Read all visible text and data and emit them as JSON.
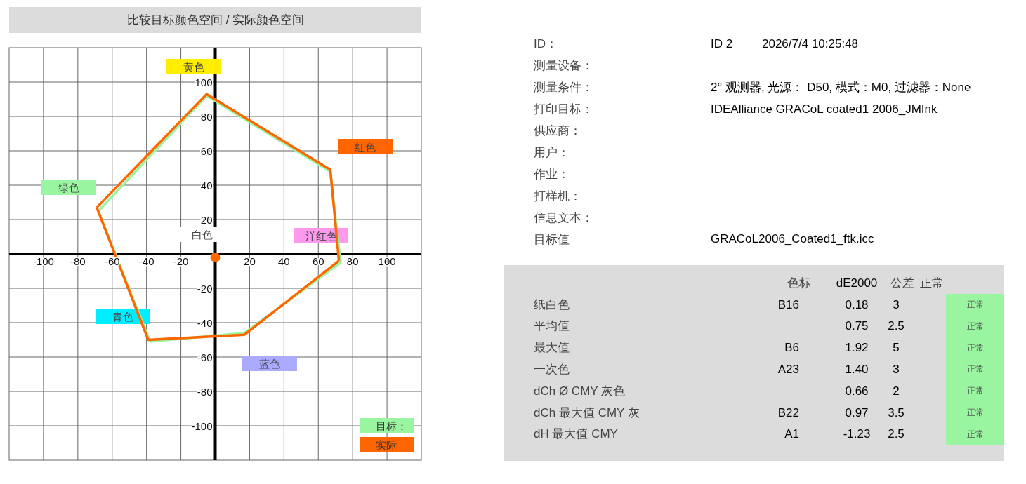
{
  "chart_data": [
    {
      "type": "line",
      "title": "比较目标颜色空间 / 实际颜色空间",
      "xlim": [
        -120,
        120
      ],
      "ylim": [
        -120,
        120
      ],
      "xticks": [
        -100,
        -80,
        -60,
        -40,
        -20,
        {
          "value": 0,
          "label": null
        },
        20,
        40,
        60,
        80,
        100
      ],
      "yticks": [
        -100,
        -80,
        -60,
        -40,
        -20,
        {
          "value": 0,
          "label": null
        },
        20,
        40,
        60,
        80,
        100
      ],
      "grid": true,
      "legend": "bottom right",
      "series": [
        {
          "name": "目标：",
          "color": "#99f5a0",
          "x": [
            -68,
            -5,
            67,
            73
          ],
          "values": [
            25,
            92,
            48,
            -5
          ]
        },
        {
          "color": "#99f5a0",
          "x": [
            -68,
            -38,
            17,
            73
          ],
          "values": [
            25,
            -51,
            -46,
            -5
          ]
        },
        {
          "name": "实际",
          "color": "#ff6600",
          "x": [
            -69,
            -5,
            67,
            72
          ],
          "values": [
            27,
            93,
            49,
            -4
          ]
        },
        {
          "color": "#ff6600",
          "x": [
            -69,
            -39,
            17,
            72
          ],
          "values": [
            27,
            -50,
            -47,
            -4
          ]
        },
        {
          "type": "scatter",
          "color": "#ff6600",
          "x": [
            0
          ],
          "values": [
            -2
          ],
          "marker": "circle"
        }
      ],
      "annotations": [
        "黄色",
        "红色",
        "绿色",
        "白色",
        "洋红色",
        "青色",
        "蓝色"
      ]
    },
    {
      "type": "other",
      "annotations": [
        "ID：",
        "测量设备：",
        "测量条件：",
        "打印目标：",
        "供应商：",
        "用户：",
        "作业：",
        "打样机：",
        "信息文本：",
        "目标值",
        "ID 2",
        "2026/7/4 10:25:48",
        "2° 观测器, 光源： D50, 模式：M0, 过滤器：None",
        "IDEAlliance GRACoL coated1 2006_JMInk",
        "GRACoL2006_Coated1_ftk.icc",
        "色标",
        "dE2000",
        "公差",
        "正常",
        "纸白色",
        "B16",
        "0.18",
        "3",
        "正常",
        "平均值",
        "0.75",
        "2.5",
        "正常",
        "最大值",
        "B6",
        "1.92",
        "5",
        "正常",
        "一次色",
        "A23",
        "1.40",
        "3",
        "正常",
        "dCh Ø CMY 灰色",
        "0.66",
        "2",
        "正常",
        "dCh 最大值 CMY 灰",
        "B22",
        "0.97",
        "3.5",
        "正常",
        "dH 最大值 CMY",
        "A1",
        "-1.23",
        "2.5",
        "正常"
      ]
    }
  ]
}
